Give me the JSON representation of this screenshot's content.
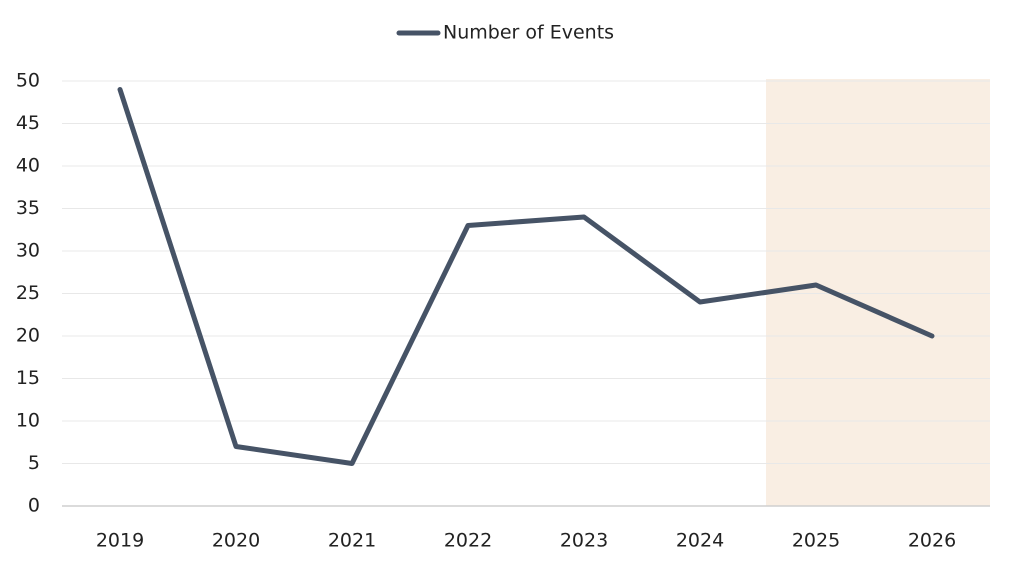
{
  "chart_data": {
    "type": "line",
    "categories": [
      "2019",
      "2020",
      "2021",
      "2022",
      "2023",
      "2024",
      "2025",
      "2026"
    ],
    "series": [
      {
        "name": "Number of Events",
        "color": "#465366",
        "values": [
          49,
          7,
          5,
          33,
          34,
          24,
          26,
          20
        ]
      }
    ],
    "ylim": [
      0,
      50
    ],
    "yticks": [
      0,
      5,
      10,
      15,
      20,
      25,
      30,
      35,
      40,
      45,
      50
    ],
    "grid": true,
    "legend": "top"
  }
}
